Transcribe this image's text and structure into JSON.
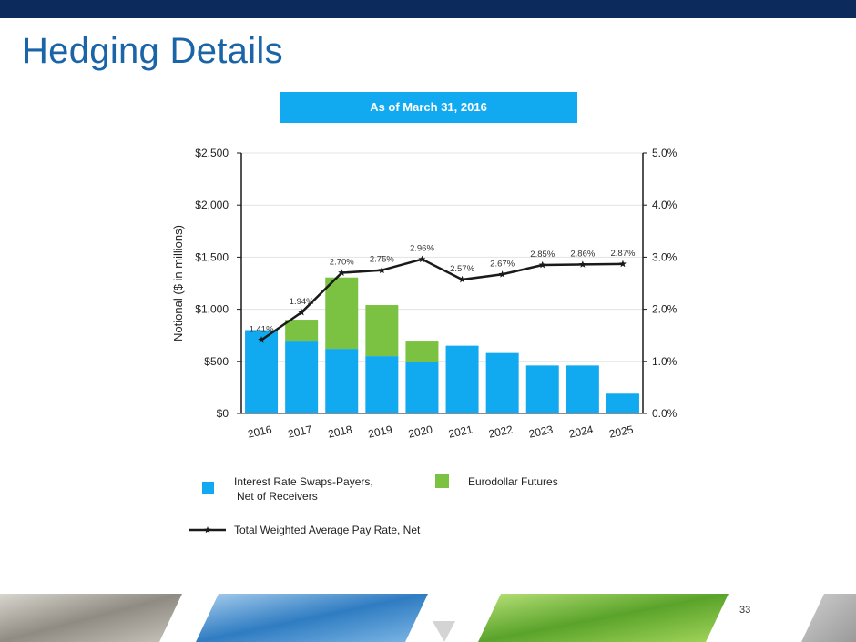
{
  "header": {
    "title": "Hedging Details",
    "subtitle": "As of March 31, 2016"
  },
  "page_number": "33",
  "colors": {
    "top_bar": "#0c2a5c",
    "title": "#1a64a8",
    "subtitle_bg": "#11aaf0",
    "swaps": "#11aaf0",
    "futures": "#7cc242",
    "line": "#1a1a1a"
  },
  "chart_data": {
    "type": "bar",
    "stacked": true,
    "categories": [
      "2016",
      "2017",
      "2018",
      "2019",
      "2020",
      "2021",
      "2022",
      "2023",
      "2024",
      "2025"
    ],
    "series": [
      {
        "name": "Interest Rate Swaps-Payers, Net of Receivers",
        "type": "bar",
        "axis": "left",
        "values": [
          800,
          690,
          620,
          550,
          490,
          650,
          580,
          460,
          460,
          190
        ]
      },
      {
        "name": "Eurodollar Futures",
        "type": "bar",
        "axis": "left",
        "values": [
          0,
          210,
          685,
          490,
          200,
          0,
          0,
          0,
          0,
          0
        ]
      },
      {
        "name": "Total Weighted Average Pay Rate, Net",
        "type": "line",
        "axis": "right",
        "values": [
          1.41,
          1.94,
          2.7,
          2.75,
          2.96,
          2.57,
          2.67,
          2.85,
          2.86,
          2.87
        ],
        "labels": [
          "1.41%",
          "1.94%",
          "2.70%",
          "2.75%",
          "2.96%",
          "2.57%",
          "2.67%",
          "2.85%",
          "2.86%",
          "2.87%"
        ]
      }
    ],
    "ylabel": "Notional ($ in millions)",
    "ylim": [
      0,
      2500
    ],
    "y_ticks": [
      "$0",
      "$500",
      "$1,000",
      "$1,500",
      "$2,000",
      "$2,500"
    ],
    "y2lim": [
      0,
      5.0
    ],
    "y2_ticks": [
      "0.0%",
      "1.0%",
      "2.0%",
      "3.0%",
      "4.0%",
      "5.0%"
    ],
    "grid": true,
    "legend_position": "bottom"
  }
}
